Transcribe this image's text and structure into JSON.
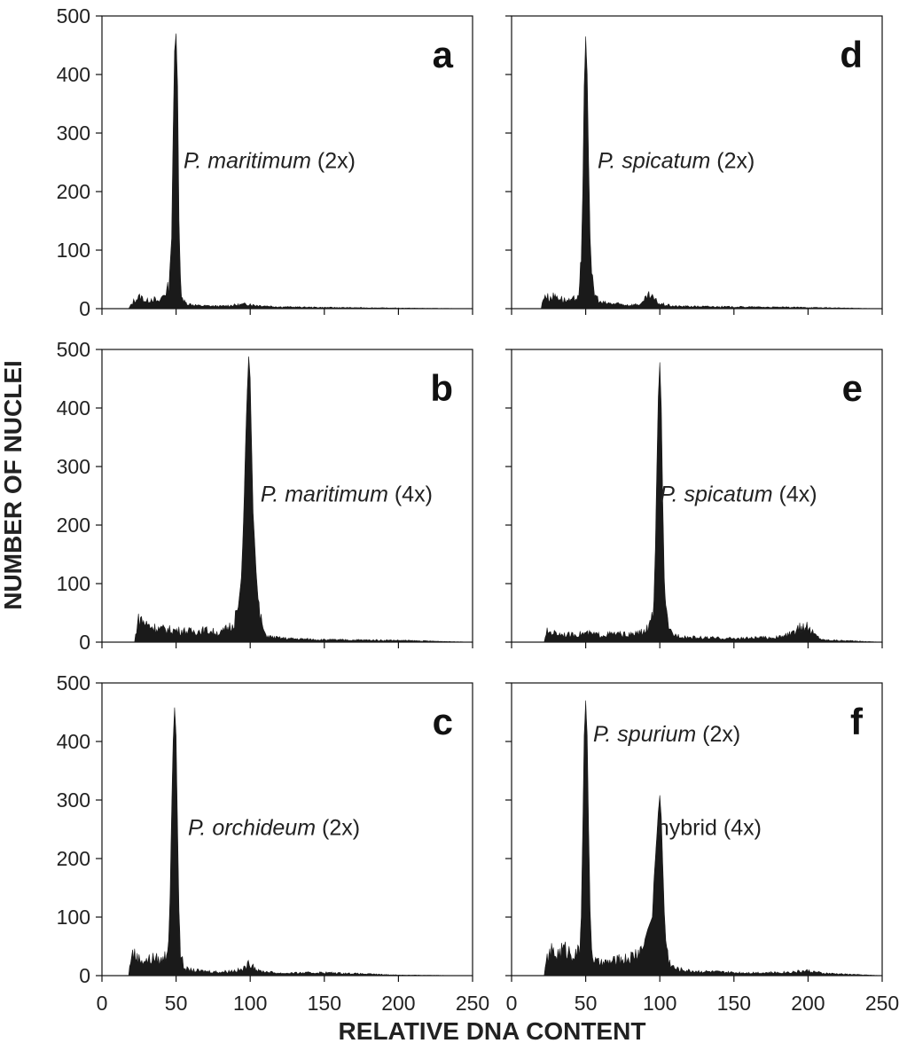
{
  "figure": {
    "ylabel": "NUMBER OF NUCLEI",
    "xlabel": "RELATIVE DNA CONTENT"
  },
  "chart_data": [
    {
      "type": "area",
      "panel": "a",
      "annotations": [
        {
          "italic": "P. maritimum",
          "plain": " (2x)"
        }
      ],
      "xlim": [
        0,
        250
      ],
      "ylim": [
        0,
        500
      ],
      "xticks": [
        0,
        50,
        100,
        150,
        200,
        250
      ],
      "yticks": [
        0,
        100,
        200,
        300,
        400,
        500
      ],
      "show_x_ticklabels": false,
      "show_y_ticklabels": true,
      "peaks": [
        [
          50,
          470
        ]
      ],
      "series": [
        {
          "x": [
            18,
            22,
            26,
            30,
            34,
            38,
            42,
            45,
            47,
            48,
            49,
            50,
            51,
            52,
            53,
            55,
            58,
            65,
            80,
            100,
            102,
            120,
            150,
            200,
            250
          ],
          "y": [
            0,
            15,
            20,
            12,
            18,
            10,
            25,
            35,
            120,
            300,
            440,
            470,
            380,
            150,
            40,
            12,
            8,
            5,
            4,
            8,
            6,
            3,
            2,
            1,
            0
          ]
        }
      ]
    },
    {
      "type": "area",
      "panel": "b",
      "annotations": [
        {
          "italic": "P. maritimum",
          "plain": " (4x)"
        }
      ],
      "xlim": [
        0,
        250
      ],
      "ylim": [
        0,
        500
      ],
      "xticks": [
        0,
        50,
        100,
        150,
        200,
        250
      ],
      "yticks": [
        0,
        100,
        200,
        300,
        400,
        500
      ],
      "show_x_ticklabels": false,
      "show_y_ticklabels": true,
      "peaks": [
        [
          99,
          488
        ]
      ],
      "series": [
        {
          "x": [
            22,
            24,
            26,
            30,
            35,
            40,
            50,
            60,
            70,
            80,
            88,
            92,
            94,
            95,
            96,
            97,
            98,
            99,
            100,
            101,
            102,
            104,
            106,
            110,
            115,
            125,
            150,
            200,
            250
          ],
          "y": [
            0,
            35,
            40,
            30,
            25,
            22,
            20,
            18,
            20,
            15,
            30,
            60,
            110,
            170,
            250,
            350,
            430,
            488,
            450,
            330,
            220,
            120,
            50,
            12,
            8,
            6,
            4,
            3,
            0
          ]
        }
      ]
    },
    {
      "type": "area",
      "panel": "c",
      "annotations": [
        {
          "italic": "P. orchideum",
          "plain": " (2x)"
        }
      ],
      "xlim": [
        0,
        250
      ],
      "ylim": [
        0,
        500
      ],
      "xticks": [
        0,
        50,
        100,
        150,
        200,
        250
      ],
      "yticks": [
        0,
        100,
        200,
        300,
        400,
        500
      ],
      "show_x_ticklabels": true,
      "show_y_ticklabels": true,
      "peaks": [
        [
          49,
          458
        ]
      ],
      "series": [
        {
          "x": [
            18,
            20,
            22,
            25,
            30,
            35,
            40,
            43,
            45,
            46,
            47,
            48,
            49,
            50,
            51,
            52,
            53,
            55,
            58,
            65,
            80,
            95,
            100,
            102,
            105,
            120,
            150,
            200,
            250
          ],
          "y": [
            0,
            40,
            35,
            28,
            25,
            30,
            25,
            35,
            60,
            140,
            280,
            400,
            458,
            410,
            250,
            110,
            40,
            15,
            10,
            8,
            6,
            10,
            22,
            18,
            8,
            4,
            5,
            1,
            0
          ]
        }
      ]
    },
    {
      "type": "area",
      "panel": "d",
      "annotations": [
        {
          "italic": "P. spicatum",
          "plain": " (2x)"
        }
      ],
      "xlim": [
        0,
        250
      ],
      "ylim": [
        0,
        500
      ],
      "xticks": [
        0,
        50,
        100,
        150,
        200,
        250
      ],
      "yticks": [
        0,
        100,
        200,
        300,
        400,
        500
      ],
      "show_x_ticklabels": false,
      "show_y_ticklabels": false,
      "peaks": [
        [
          50,
          465
        ]
      ],
      "series": [
        {
          "x": [
            20,
            22,
            25,
            30,
            35,
            40,
            44,
            46,
            47,
            48,
            49,
            50,
            51,
            52,
            53,
            54,
            56,
            60,
            70,
            80,
            88,
            92,
            95,
            100,
            110,
            150,
            200,
            250
          ],
          "y": [
            0,
            25,
            18,
            22,
            15,
            12,
            20,
            35,
            80,
            200,
            380,
            465,
            400,
            250,
            120,
            60,
            25,
            10,
            8,
            6,
            8,
            22,
            18,
            8,
            4,
            3,
            2,
            0
          ]
        }
      ]
    },
    {
      "type": "area",
      "panel": "e",
      "annotations": [
        {
          "italic": "P. spicatum",
          "plain": " (4x)"
        }
      ],
      "xlim": [
        0,
        250
      ],
      "ylim": [
        0,
        500
      ],
      "xticks": [
        0,
        50,
        100,
        150,
        200,
        250
      ],
      "yticks": [
        0,
        100,
        200,
        300,
        400,
        500
      ],
      "show_x_ticklabels": false,
      "show_y_ticklabels": false,
      "peaks": [
        [
          100,
          478
        ]
      ],
      "series": [
        {
          "x": [
            22,
            24,
            30,
            40,
            50,
            60,
            70,
            80,
            90,
            94,
            96,
            97,
            98,
            99,
            100,
            101,
            102,
            103,
            104,
            106,
            110,
            120,
            150,
            180,
            190,
            195,
            198,
            205,
            210,
            250
          ],
          "y": [
            0,
            18,
            15,
            12,
            15,
            12,
            14,
            12,
            18,
            30,
            70,
            160,
            300,
            420,
            478,
            400,
            240,
            110,
            50,
            20,
            12,
            8,
            6,
            8,
            15,
            25,
            28,
            12,
            4,
            0
          ]
        }
      ]
    },
    {
      "type": "area",
      "panel": "f",
      "annotations": [
        {
          "italic": "P. spurium",
          "plain": " (2x)"
        },
        {
          "italic": "",
          "plain": "hybrid (4x)"
        }
      ],
      "xlim": [
        0,
        250
      ],
      "ylim": [
        0,
        500
      ],
      "xticks": [
        0,
        50,
        100,
        150,
        200,
        250
      ],
      "yticks": [
        0,
        100,
        200,
        300,
        400,
        500
      ],
      "show_x_ticklabels": true,
      "show_y_ticklabels": false,
      "peaks": [
        [
          50,
          470
        ],
        [
          100,
          308
        ]
      ],
      "series": [
        {
          "x": [
            22,
            24,
            27,
            30,
            35,
            40,
            44,
            46,
            47,
            48,
            49,
            50,
            51,
            52,
            53,
            54,
            56,
            60,
            70,
            80,
            88,
            92,
            95,
            96,
            97,
            98,
            99,
            100,
            101,
            102,
            103,
            104,
            106,
            110,
            120,
            150,
            180,
            200,
            205,
            210,
            250
          ],
          "y": [
            0,
            30,
            40,
            35,
            45,
            40,
            35,
            45,
            100,
            250,
            410,
            470,
            410,
            250,
            110,
            45,
            25,
            20,
            25,
            30,
            45,
            80,
            100,
            160,
            200,
            240,
            280,
            308,
            270,
            190,
            110,
            60,
            25,
            12,
            8,
            5,
            5,
            8,
            6,
            4,
            0
          ]
        }
      ]
    }
  ]
}
